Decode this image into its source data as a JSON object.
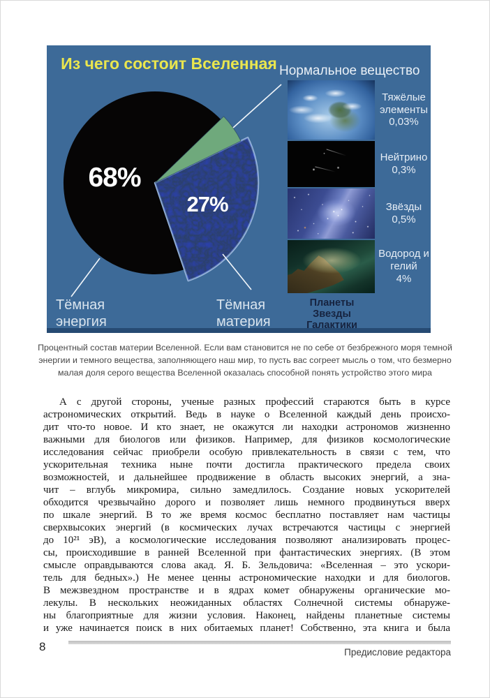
{
  "page": {
    "number": "8",
    "running_footer": "Предисловие редактора"
  },
  "figure": {
    "title": "Из чего состоит Вселенная",
    "normal_matter_heading": "Нормальное вещество",
    "dark_energy_label_lines": [
      "Тёмная",
      "энергия"
    ],
    "dark_matter_label_lines": [
      "Тёмная",
      "материя"
    ],
    "panel": {
      "items": [
        {
          "image": "earth-photo",
          "label": "Тяжёлые элементы",
          "value": "0,03%"
        },
        {
          "image": "neutrino-photo",
          "label": "Нейтрино",
          "value": "0,3%"
        },
        {
          "image": "starfield-photo",
          "label": "Звёзды",
          "value": "0,5%"
        },
        {
          "image": "nebula-photo",
          "label": "Водород и гелий",
          "value": "4%"
        }
      ],
      "footnote_lines": [
        "Планеты",
        "Звезды",
        "Галактики"
      ]
    }
  },
  "chart_data": {
    "type": "pie",
    "title": "Из чего состоит Вселенная",
    "slices": [
      {
        "label": "Тёмная энергия",
        "pct": 68,
        "display": "68%",
        "color": "#060505"
      },
      {
        "label": "Тёмная материя",
        "pct": 27,
        "display": "27%",
        "color": "#1b2253"
      },
      {
        "label": "Нормальное вещество",
        "pct": 5,
        "display": "",
        "color": "#6fa97c"
      }
    ],
    "normal_matter_breakdown": [
      {
        "label": "Тяжёлые элементы",
        "pct": 0.03
      },
      {
        "label": "Нейтрино",
        "pct": 0.3
      },
      {
        "label": "Звёзды",
        "pct": 0.5
      },
      {
        "label": "Водород и гелий",
        "pct": 4
      }
    ],
    "legend_position": "right",
    "start_angle_deg": 44,
    "background_color": "#3d6a98",
    "title_color": "#eae64e"
  },
  "caption_lines": [
    "Процентный состав материи Вселенной. Если вам становится не по себе от безбрежного моря темной",
    "энергии и темного вещества, заполняющего наш мир, то пусть вас согреет мысль о том, что безмерно",
    "малая доля серого вещества Вселенной оказалась способной понять устройство этого мира"
  ],
  "body": {
    "lines": [
      "А с другой стороны, ученые разных профессий стараются быть в курсе",
      "астрономических открытий. Ведь в науке о Вселенной каждый день происхо-",
      "дит что-то новое. И кто знает, не окажутся ли находки астрономов жизненно",
      "важными для биологов или физиков. Например, для физиков космологические",
      "исследования сейчас приобрели особую привлекательность в связи с тем, что",
      "ускорительная техника ныне почти достигла практического предела своих",
      "возможностей, и дальнейшее продвижение в область высоких энергий, а зна-",
      "чит – вглубь микромира, сильно замедлилось. Создание новых ускорителей",
      "обходится чрезвычайно дорого и позволяет лишь немного продвинуться вверх",
      "по шкале энергий. В то же время космос бесплатно поставляет нам частицы",
      "сверхвысоких энергий (в космических лучах встречаются частицы с энергией",
      "до 10²¹ эВ), а космологические исследования позволяют анализировать процес-",
      "сы, происходившие в ранней Вселенной при фантастических энергиях. (В этом",
      "смысле оправдываются слова акад. Я. Б. Зельдовича: «Вселенная – это ускори-",
      "тель для бедных».) Не менее ценны астрономические находки и для биологов.",
      "В межзвездном пространстве и в ядрах комет обнаружены органические мо-",
      "лекулы. В нескольких неожиданных областях Солнечной системы обнаруже-",
      "ны благоприятные для жизни условия. Наконец, найдены планетные системы",
      "и уже начинается поиск в них обитаемых планет! Собственно, эта книга и была"
    ]
  }
}
